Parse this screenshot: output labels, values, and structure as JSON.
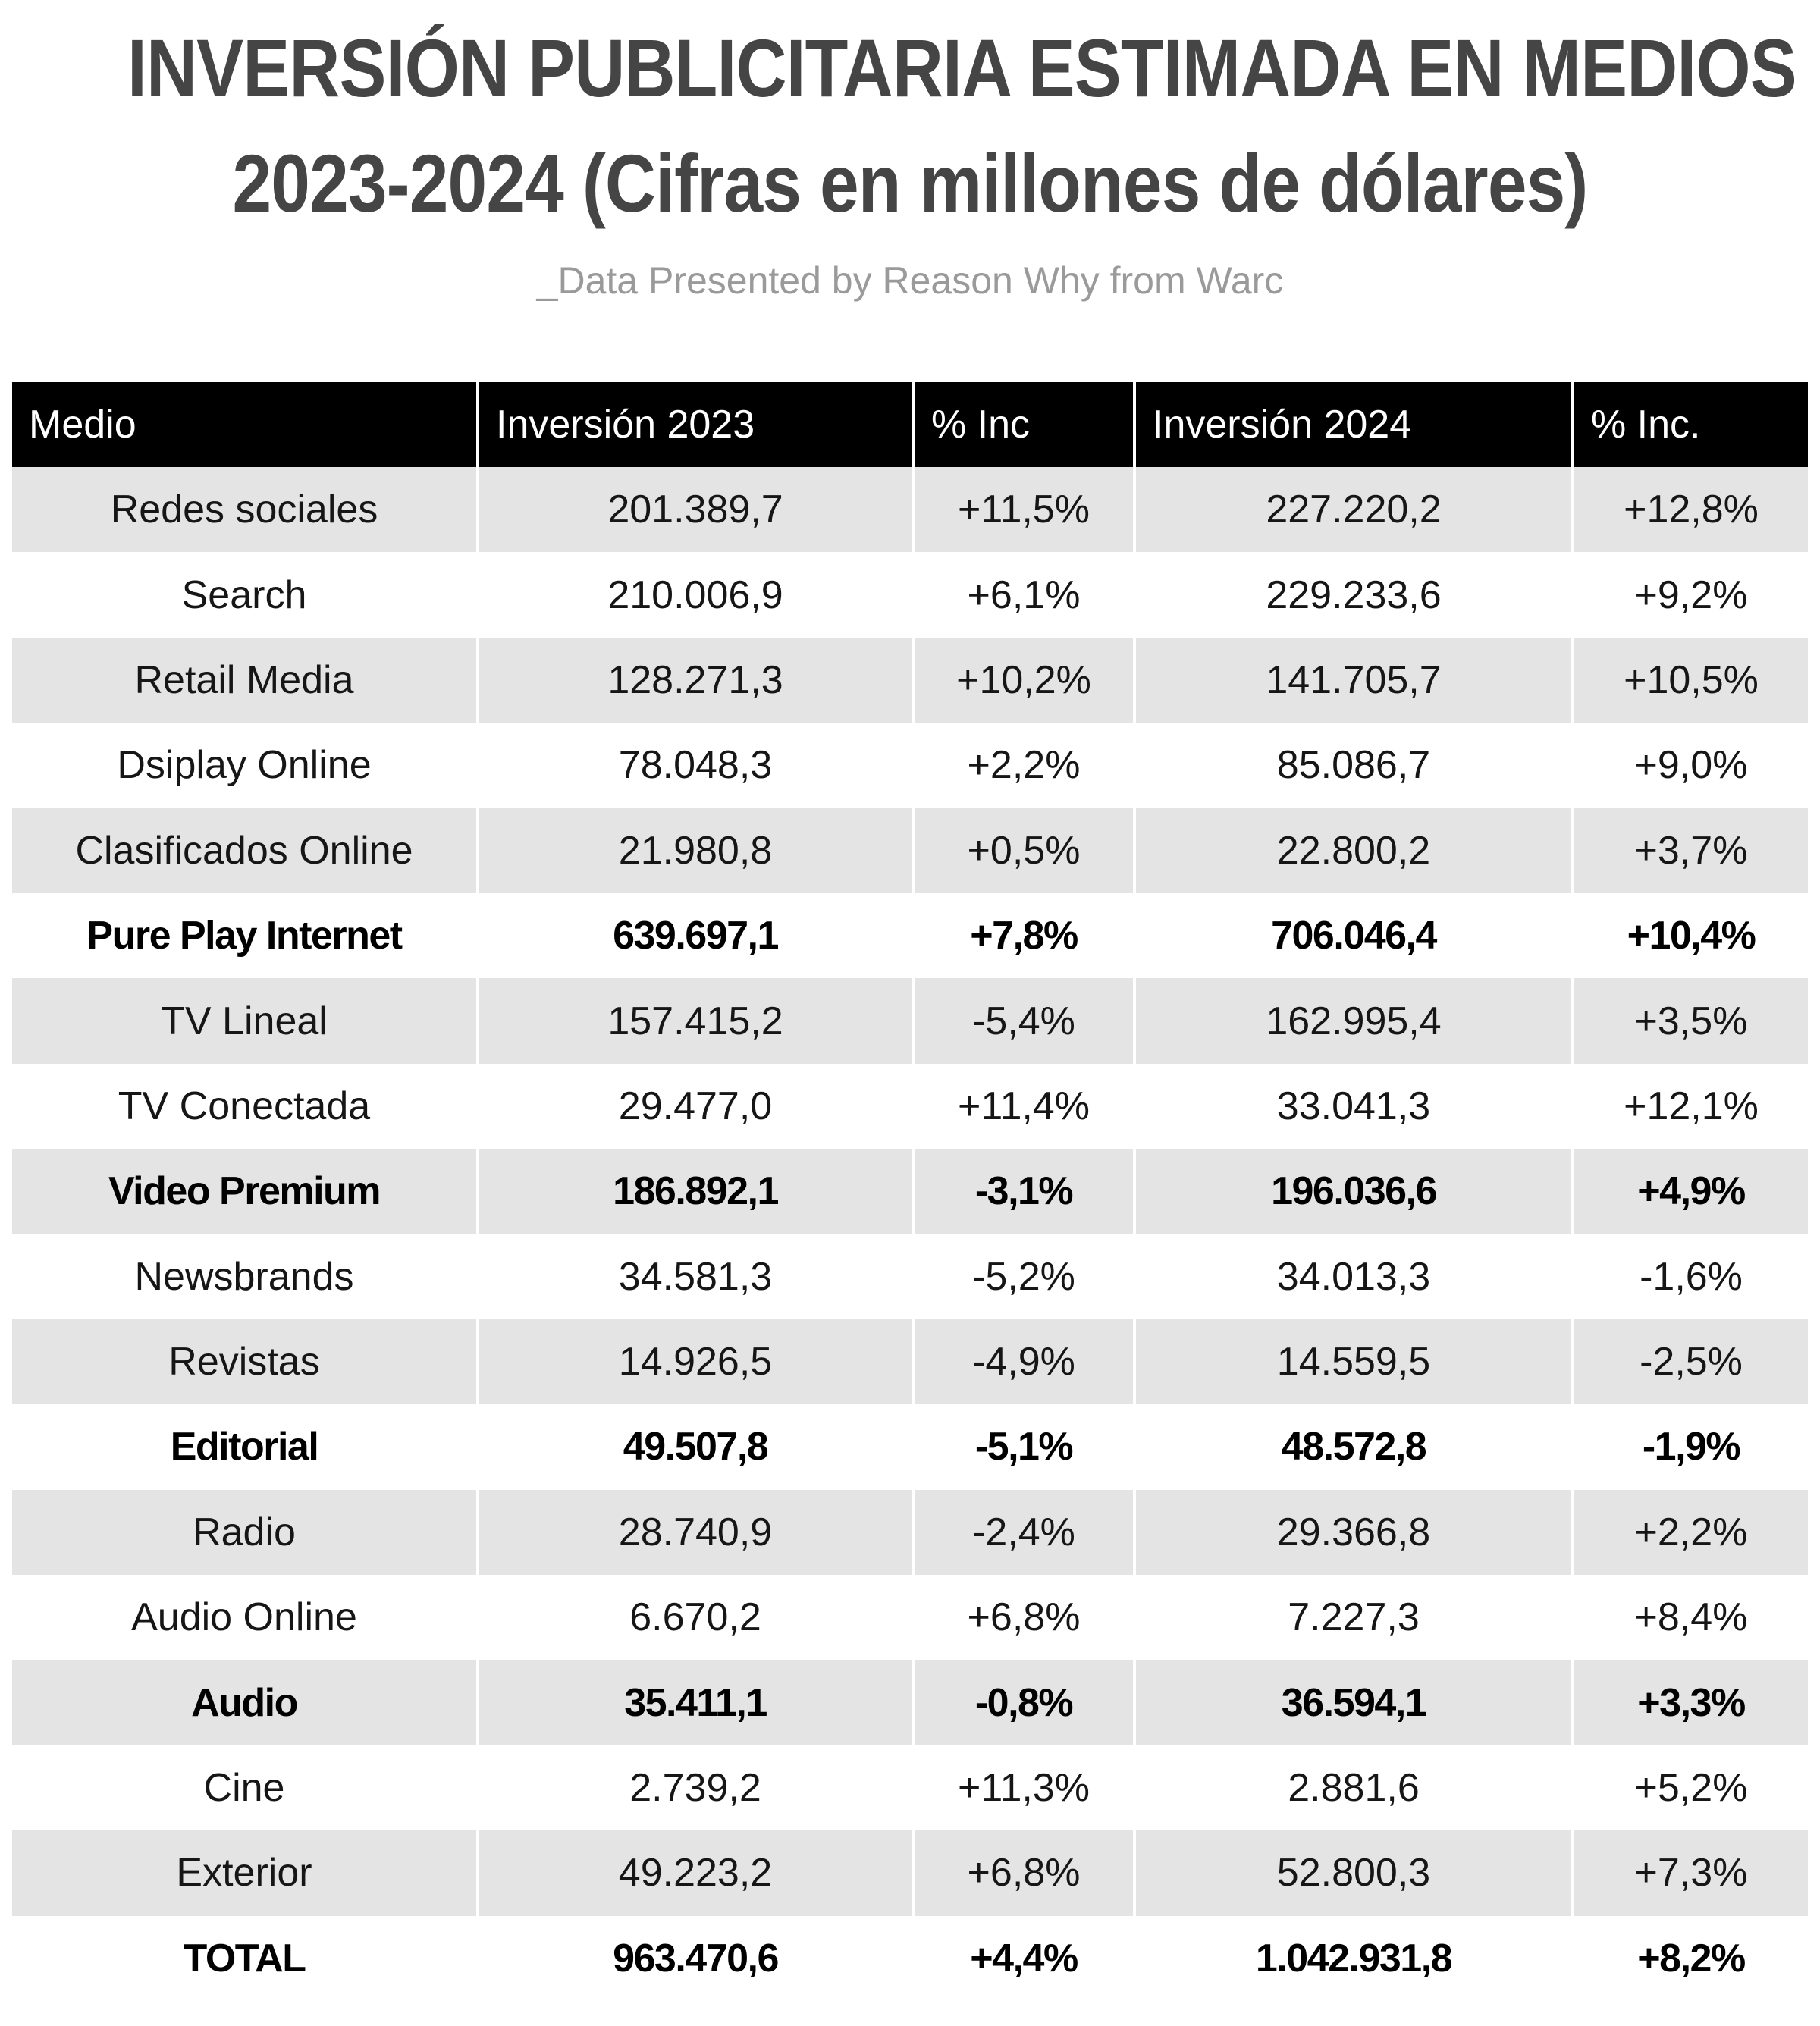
{
  "title": {
    "line1": "INVERSIÓN PUBLICITARIA ESTIMADA EN MEDIOS",
    "line2": "2023-2024 (Cifras en millones de dólares)"
  },
  "subtitle": "_Data Presented by Reason Why from Warc",
  "colors": {
    "header_bg": "#000000",
    "header_text": "#ffffff",
    "row_shade": "#e4e4e4",
    "row_plain": "#ffffff",
    "title_text": "#454545",
    "subtitle_text": "#9a9a9a"
  },
  "table": {
    "headers": [
      "Medio",
      "Inversión 2023",
      "% Inc",
      "Inversión 2024",
      "% Inc."
    ],
    "rows": [
      {
        "medio": "Redes sociales",
        "inv2023": "201.389,7",
        "inc2023": "+11,5%",
        "inv2024": "227.220,2",
        "inc2024": "+12,8%",
        "bold": false
      },
      {
        "medio": "Search",
        "inv2023": "210.006,9",
        "inc2023": "+6,1%",
        "inv2024": "229.233,6",
        "inc2024": "+9,2%",
        "bold": false
      },
      {
        "medio": "Retail Media",
        "inv2023": "128.271,3",
        "inc2023": "+10,2%",
        "inv2024": "141.705,7",
        "inc2024": "+10,5%",
        "bold": false
      },
      {
        "medio": "Dsiplay Online",
        "inv2023": "78.048,3",
        "inc2023": "+2,2%",
        "inv2024": "85.086,7",
        "inc2024": "+9,0%",
        "bold": false
      },
      {
        "medio": "Clasificados Online",
        "inv2023": "21.980,8",
        "inc2023": "+0,5%",
        "inv2024": "22.800,2",
        "inc2024": "+3,7%",
        "bold": false
      },
      {
        "medio": "Pure Play Internet",
        "inv2023": "639.697,1",
        "inc2023": "+7,8%",
        "inv2024": "706.046,4",
        "inc2024": "+10,4%",
        "bold": true
      },
      {
        "medio": "TV Lineal",
        "inv2023": "157.415,2",
        "inc2023": "-5,4%",
        "inv2024": "162.995,4",
        "inc2024": "+3,5%",
        "bold": false
      },
      {
        "medio": "TV Conectada",
        "inv2023": "29.477,0",
        "inc2023": "+11,4%",
        "inv2024": "33.041,3",
        "inc2024": "+12,1%",
        "bold": false
      },
      {
        "medio": "Video Premium",
        "inv2023": "186.892,1",
        "inc2023": "-3,1%",
        "inv2024": "196.036,6",
        "inc2024": "+4,9%",
        "bold": true
      },
      {
        "medio": "Newsbrands",
        "inv2023": "34.581,3",
        "inc2023": "-5,2%",
        "inv2024": "34.013,3",
        "inc2024": "-1,6%",
        "bold": false
      },
      {
        "medio": "Revistas",
        "inv2023": "14.926,5",
        "inc2023": "-4,9%",
        "inv2024": "14.559,5",
        "inc2024": "-2,5%",
        "bold": false
      },
      {
        "medio": "Editorial",
        "inv2023": "49.507,8",
        "inc2023": "-5,1%",
        "inv2024": "48.572,8",
        "inc2024": "-1,9%",
        "bold": true
      },
      {
        "medio": "Radio",
        "inv2023": "28.740,9",
        "inc2023": "-2,4%",
        "inv2024": "29.366,8",
        "inc2024": "+2,2%",
        "bold": false
      },
      {
        "medio": "Audio Online",
        "inv2023": "6.670,2",
        "inc2023": "+6,8%",
        "inv2024": "7.227,3",
        "inc2024": "+8,4%",
        "bold": false
      },
      {
        "medio": "Audio",
        "inv2023": "35.411,1",
        "inc2023": "-0,8%",
        "inv2024": "36.594,1",
        "inc2024": "+3,3%",
        "bold": true
      },
      {
        "medio": "Cine",
        "inv2023": "2.739,2",
        "inc2023": "+11,3%",
        "inv2024": "2.881,6",
        "inc2024": "+5,2%",
        "bold": false
      },
      {
        "medio": "Exterior",
        "inv2023": "49.223,2",
        "inc2023": "+6,8%",
        "inv2024": "52.800,3",
        "inc2024": "+7,3%",
        "bold": false
      },
      {
        "medio": "TOTAL",
        "inv2023": "963.470,6",
        "inc2023": "+4,4%",
        "inv2024": "1.042.931,8",
        "inc2024": "+8,2%",
        "bold": true
      }
    ]
  }
}
